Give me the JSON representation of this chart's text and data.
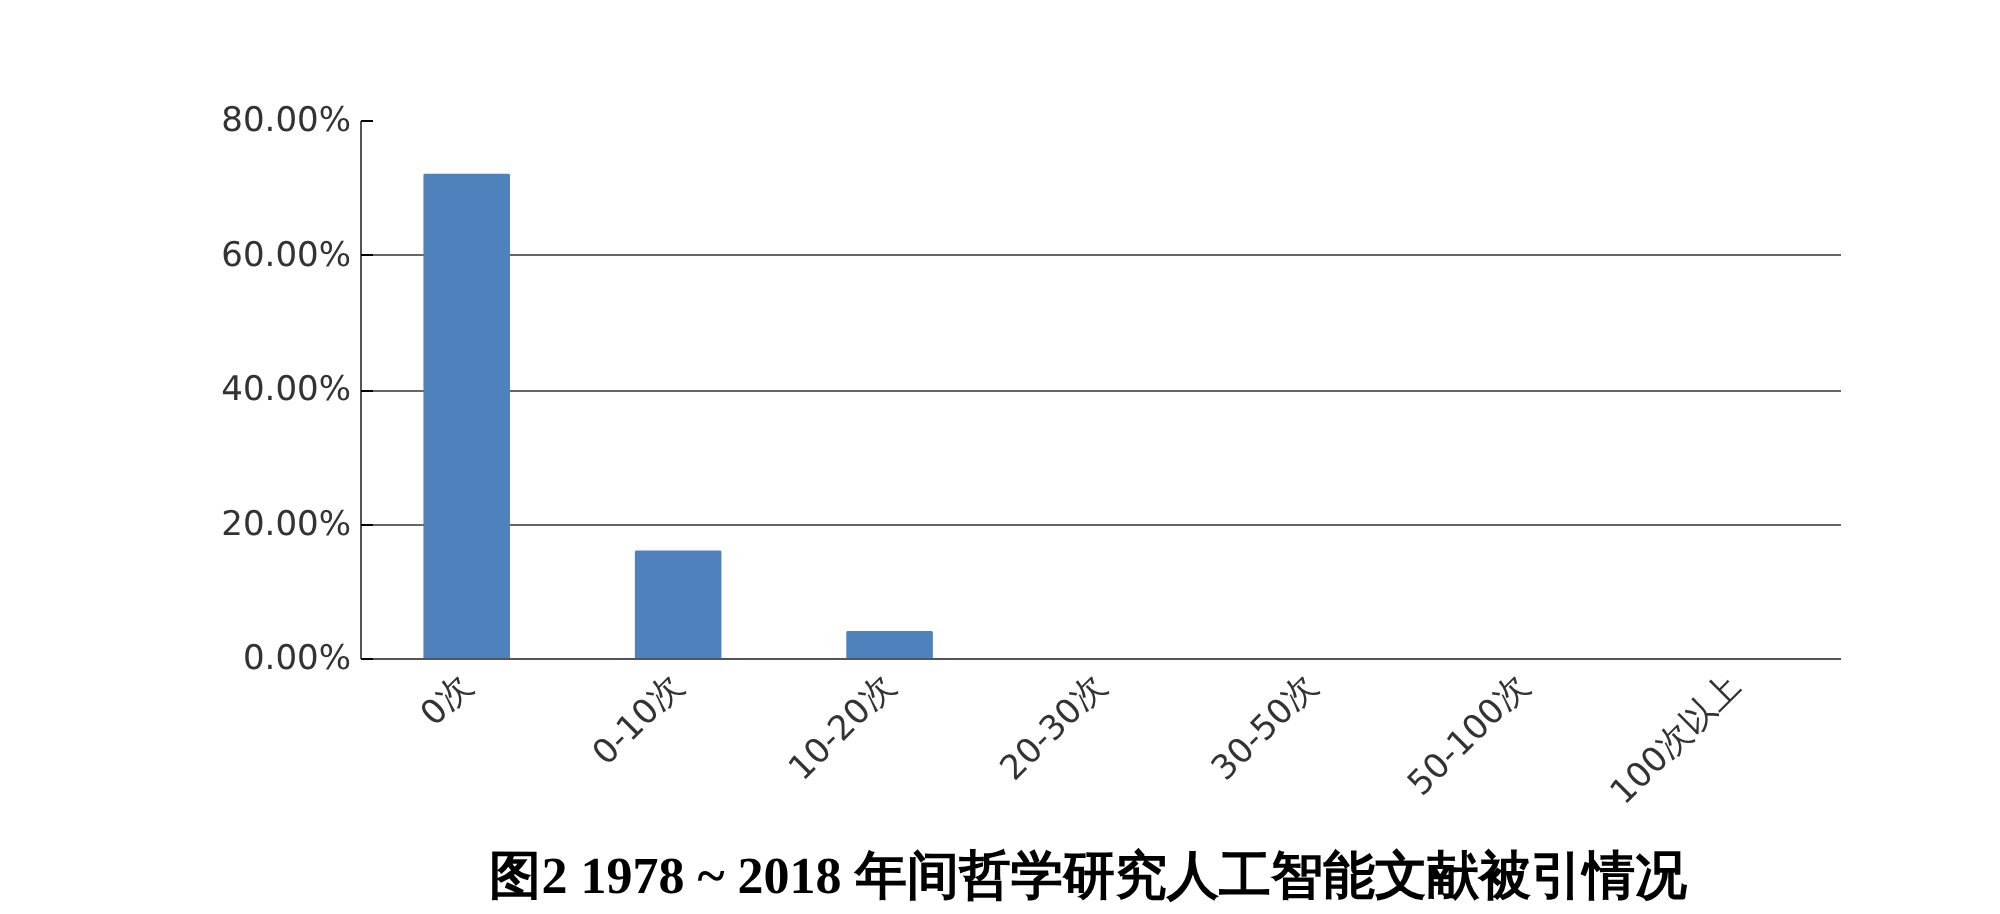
{
  "chart_data": {
    "type": "bar",
    "title": "图2   1978 ~ 2018 年间哲学研究人工智能文献被引情况",
    "categories": [
      "0次",
      "0-10次",
      "10-20次",
      "20-30次",
      "30-50次",
      "50-100次",
      "100次以上"
    ],
    "values": [
      72,
      16,
      4,
      0,
      0,
      0,
      0
    ],
    "color": "#4f81bd",
    "ylim": [
      0,
      80
    ],
    "yticks": [
      {
        "value": 0,
        "label": "0.00%"
      },
      {
        "value": 20,
        "label": "20.00%"
      },
      {
        "value": 40,
        "label": "40.00%"
      },
      {
        "value": 60,
        "label": "60.00%"
      },
      {
        "value": 80,
        "label": "80.00%"
      }
    ],
    "grid": "y"
  }
}
